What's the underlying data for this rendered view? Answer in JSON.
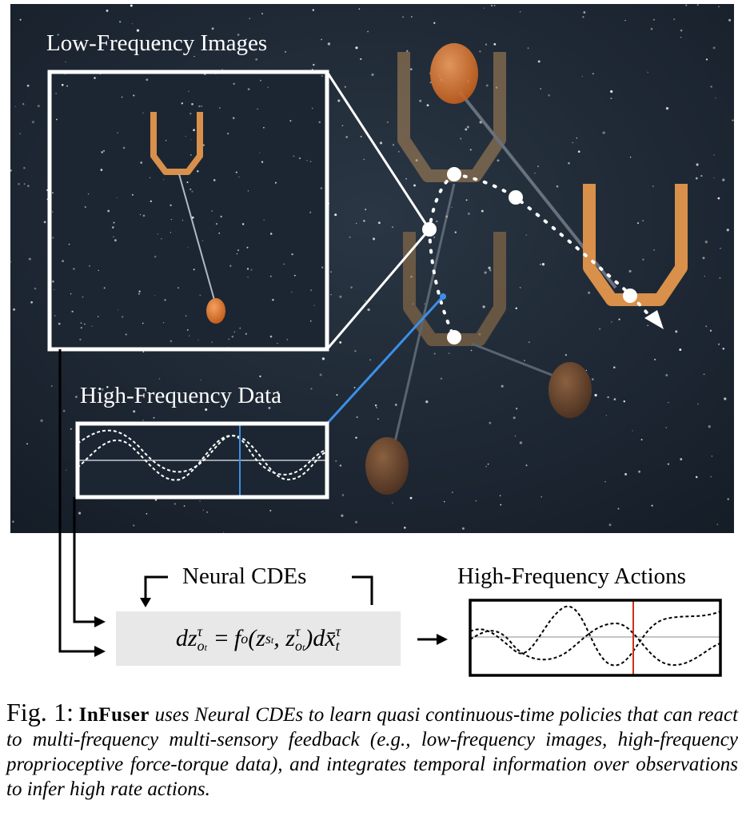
{
  "labels": {
    "low_freq_images": "Low-Frequency Images",
    "high_freq_data": "High-Frequency Data",
    "neural_cdes": "Neural CDEs",
    "high_freq_actions": "High-Frequency Actions"
  },
  "equation": {
    "lhs": "dz",
    "lhs_sup": "τ",
    "lhs_sub": "o",
    "lhs_sub_sub": "t",
    "eq": " = ",
    "func": "f",
    "func_sub": "o",
    "args_open": "(z",
    "arg1_sub": "s",
    "arg1_sub_sub": "t",
    "comma": ", z",
    "arg2_sup": "τ",
    "arg2_sub": "o",
    "arg2_sub_sub": "t",
    "args_close": ")d",
    "xbar": "x̄",
    "xbar_sup": "τ",
    "xbar_sub": "t"
  },
  "caption": {
    "fig_label": "Fig. 1:",
    "name": "InFuser",
    "text": "uses Neural CDEs to learn quasi continuous-time policies that can react to multi-frequency multi-sensory feedback (e.g., low-frequency images, high-frequency proprioceptive force-torque data), and integrates temporal information over observations to infer high rate actions."
  },
  "colors": {
    "scene_bg": "#1e2a36",
    "gripper": "#d8904a",
    "ball": "#e0742a",
    "blue_marker": "#3d8fe8",
    "red_marker": "#d03018",
    "eq_bg": "#e8e8e8"
  }
}
